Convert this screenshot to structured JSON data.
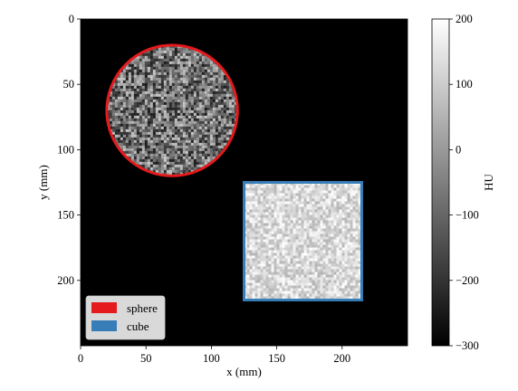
{
  "chart_data": {
    "type": "heatmap",
    "title": "",
    "xlabel": "x (mm)",
    "ylabel": "y (mm)",
    "xlim": [
      0,
      250
    ],
    "ylim": [
      250,
      0
    ],
    "x_ticks": [
      0,
      50,
      100,
      150,
      200
    ],
    "y_ticks": [
      0,
      50,
      100,
      150,
      200
    ],
    "background_hu": -300,
    "shapes": [
      {
        "name": "sphere",
        "kind": "circle",
        "center": [
          70,
          70
        ],
        "radius": 50,
        "hu_range": [
          -250,
          100
        ],
        "outline_color": "#e41a1c"
      },
      {
        "name": "cube",
        "kind": "square",
        "x_range": [
          125,
          215
        ],
        "y_range": [
          125,
          215
        ],
        "hu_range": [
          50,
          200
        ],
        "outline_color": "#377eb8"
      }
    ],
    "colorbar": {
      "label": "HU",
      "range": [
        -300,
        200
      ],
      "ticks": [
        200,
        100,
        0,
        -100,
        -200,
        -300
      ],
      "tick_labels": [
        "200",
        "100",
        "0",
        "−100",
        "−200",
        "−300"
      ],
      "colormap": "gray"
    },
    "legend": {
      "placement": "lower-left",
      "entries": [
        {
          "label": "sphere",
          "color": "#e41a1c"
        },
        {
          "label": "cube",
          "color": "#377eb8"
        }
      ]
    },
    "grid": false
  }
}
